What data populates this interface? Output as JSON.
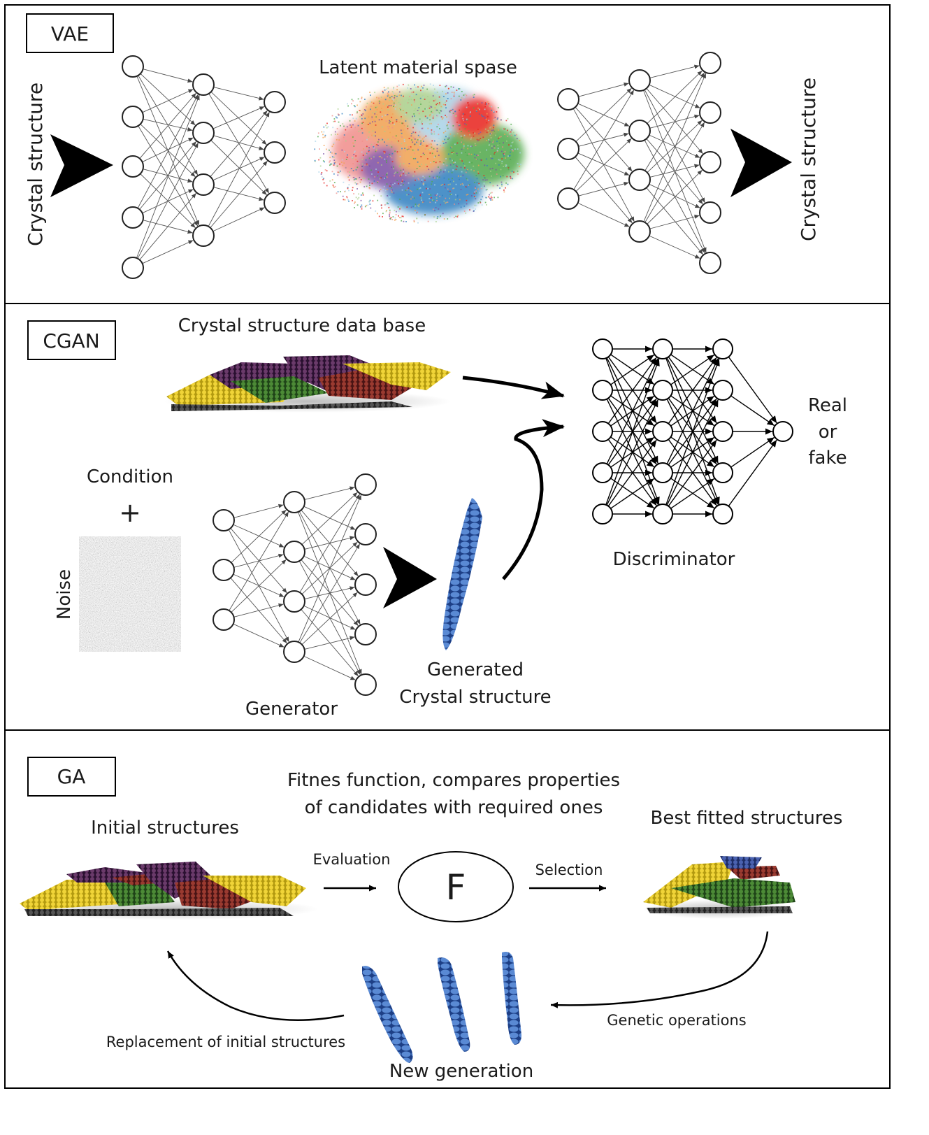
{
  "vae": {
    "tag": "VAE",
    "latent_label": "Latent material spase",
    "input_label": "Crystal structure",
    "output_label": "Crystal structure"
  },
  "cgan": {
    "tag": "CGAN",
    "database_label": "Crystal structure data base",
    "condition_label": "Condition",
    "plus_sign": "+",
    "noise_label": "Noise",
    "generator_label": "Generator",
    "generated_label_line1": "Generated",
    "generated_label_line2": "Crystal structure",
    "discriminator_label": "Discriminator",
    "output_line1": "Real",
    "output_line2": "or",
    "output_line3": "fake"
  },
  "ga": {
    "tag": "GA",
    "fitness_line1": "Fitnes function, compares properties",
    "fitness_line2": "of candidates with required ones",
    "initial_label": "Initial structures",
    "best_label": "Best fitted structures",
    "evaluation_label": "Evaluation",
    "selection_label": "Selection",
    "fitness_symbol": "F",
    "genetic_label": "Genetic operations",
    "replacement_label": "Replacement of initial structures",
    "new_generation_label": "New generation"
  },
  "colors": {
    "cluster_red": "#e8211d",
    "cluster_green": "#4fa84a",
    "cluster_blue": "#2d7fc0",
    "cluster_purple": "#7b4ea3",
    "cluster_orange": "#f0a050",
    "cluster_pink": "#f08d8a",
    "cluster_lightblue": "#a9d3e8",
    "cluster_lightgreen": "#a9cf8a",
    "crystal_yellow": "#e3c21d",
    "crystal_darkred": "#7a2424",
    "crystal_purple": "#5a2a5a",
    "crystal_green": "#3c7a2a",
    "generated_blue": "#3565b0"
  }
}
